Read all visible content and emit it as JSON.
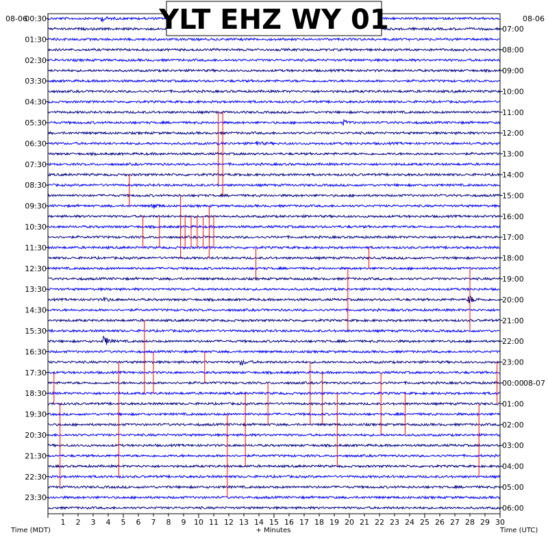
{
  "chart_data": {
    "type": "line",
    "title": "YLT EHZ WY 01",
    "xlabel": "+ Minutes",
    "left_axis_label": "Time (MDT)",
    "right_axis_label": "Time (UTC)",
    "left_date": "08-06",
    "right_date_top": "08-06",
    "right_date_mid": "08-07",
    "xlim": [
      0,
      30
    ],
    "x_ticks": [
      "1",
      "2",
      "3",
      "4",
      "5",
      "6",
      "7",
      "8",
      "9",
      "10",
      "11",
      "12",
      "13",
      "14",
      "15",
      "16",
      "17",
      "18",
      "19",
      "20",
      "21",
      "22",
      "23",
      "24",
      "25",
      "26",
      "27",
      "28",
      "29",
      "30"
    ],
    "left_time_labels": [
      "00:30",
      "01:30",
      "02:30",
      "03:30",
      "04:30",
      "05:30",
      "06:30",
      "07:30",
      "08:30",
      "09:30",
      "10:30",
      "11:30",
      "12:30",
      "13:30",
      "14:30",
      "15:30",
      "16:30",
      "17:30",
      "18:30",
      "19:30",
      "20:30",
      "21:30",
      "22:30",
      "23:30"
    ],
    "right_time_labels": [
      "07:00",
      "08:00",
      "09:00",
      "10:00",
      "11:00",
      "12:00",
      "13:00",
      "14:00",
      "15:00",
      "16:00",
      "17:00",
      "18:00",
      "19:00",
      "20:00",
      "21:00",
      "22:00",
      "23:00",
      "00:00",
      "01:00",
      "02:00",
      "03:00",
      "04:00",
      "05:00",
      "06:00"
    ],
    "trace_colors": [
      "#0000ff",
      "#000080"
    ],
    "pick_color": "#ff0000",
    "trace_count": 48,
    "trace_minutes": 30,
    "grid": true,
    "events": [
      {
        "trace": 1,
        "minute": 3.6,
        "amplitude": 3
      },
      {
        "trace": 11,
        "minute": 19.6,
        "amplitude": 3
      },
      {
        "trace": 13,
        "minute": 13.8,
        "amplitude": 3
      },
      {
        "trace": 19,
        "minute": 6.9,
        "amplitude": 4
      },
      {
        "trace": 28,
        "minute": 3.7,
        "amplitude": 3
      },
      {
        "trace": 28,
        "minute": 27.9,
        "amplitude": 7
      },
      {
        "trace": 32,
        "minute": 3.7,
        "amplitude": 8
      },
      {
        "trace": 34,
        "minute": 12.8,
        "amplitude": 4
      }
    ],
    "picks": [
      {
        "minute": 11.3,
        "from_trace": 10,
        "to_trace": 17
      },
      {
        "minute": 11.6,
        "from_trace": 10,
        "to_trace": 18
      },
      {
        "minute": 5.4,
        "from_trace": 16,
        "to_trace": 19
      },
      {
        "minute": 8.8,
        "from_trace": 18,
        "to_trace": 24
      },
      {
        "minute": 10.7,
        "from_trace": 19,
        "to_trace": 24
      },
      {
        "minute": 6.3,
        "from_trace": 20,
        "to_trace": 23
      },
      {
        "minute": 7.4,
        "from_trace": 20,
        "to_trace": 23
      },
      {
        "minute": 9.1,
        "from_trace": 20,
        "to_trace": 23
      },
      {
        "minute": 9.5,
        "from_trace": 20,
        "to_trace": 23
      },
      {
        "minute": 9.9,
        "from_trace": 20,
        "to_trace": 23
      },
      {
        "minute": 10.3,
        "from_trace": 20,
        "to_trace": 23
      },
      {
        "minute": 11.0,
        "from_trace": 20,
        "to_trace": 23
      },
      {
        "minute": 13.8,
        "from_trace": 23,
        "to_trace": 26
      },
      {
        "minute": 21.3,
        "from_trace": 23,
        "to_trace": 25
      },
      {
        "minute": 19.9,
        "from_trace": 25,
        "to_trace": 31
      },
      {
        "minute": 28.0,
        "from_trace": 25,
        "to_trace": 31
      },
      {
        "minute": 6.4,
        "from_trace": 30,
        "to_trace": 37
      },
      {
        "minute": 7.0,
        "from_trace": 33,
        "to_trace": 37
      },
      {
        "minute": 10.4,
        "from_trace": 33,
        "to_trace": 36
      },
      {
        "minute": 4.7,
        "from_trace": 34,
        "to_trace": 45
      },
      {
        "minute": 0.4,
        "from_trace": 35,
        "to_trace": 38
      },
      {
        "minute": 17.4,
        "from_trace": 34,
        "to_trace": 40
      },
      {
        "minute": 18.2,
        "from_trace": 35,
        "to_trace": 40
      },
      {
        "minute": 22.1,
        "from_trace": 35,
        "to_trace": 41
      },
      {
        "minute": 29.8,
        "from_trace": 34,
        "to_trace": 38
      },
      {
        "minute": 13.1,
        "from_trace": 37,
        "to_trace": 44
      },
      {
        "minute": 14.6,
        "from_trace": 36,
        "to_trace": 40
      },
      {
        "minute": 19.2,
        "from_trace": 37,
        "to_trace": 44
      },
      {
        "minute": 0.8,
        "from_trace": 38,
        "to_trace": 46
      },
      {
        "minute": 11.9,
        "from_trace": 39,
        "to_trace": 47
      },
      {
        "minute": 23.7,
        "from_trace": 37,
        "to_trace": 41
      },
      {
        "minute": 28.6,
        "from_trace": 38,
        "to_trace": 45
      }
    ]
  }
}
